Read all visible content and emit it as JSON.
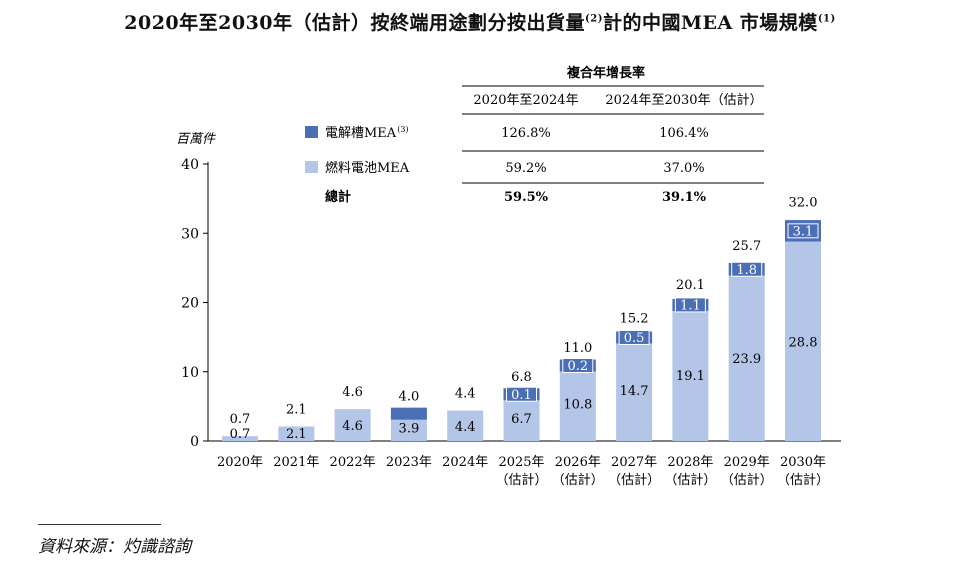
{
  "title": {
    "main": "2020年至2030年（估計）按終端用途劃分按出貨量",
    "note2": "(2)",
    "mid": "計的中國MEA 市場規模",
    "note1": "(1)"
  },
  "source": "資料來源：灼識諮詢",
  "colors": {
    "electrolyzer": "#4a6fb5",
    "fuel_cell": "#b4c6e7",
    "axis": "#000000"
  },
  "growth_table": {
    "header": "複合年增長率",
    "columns": [
      "2020年至2024年",
      "2024年至2030年（估計）"
    ],
    "rows": [
      {
        "label": "電解槽MEA",
        "note": "(3)",
        "values": [
          "126.8%",
          "106.4%"
        ],
        "bold": false,
        "swatch": "electrolyzer"
      },
      {
        "label": "燃料電池MEA",
        "note": "",
        "values": [
          "59.2%",
          "37.0%"
        ],
        "bold": false,
        "swatch": "fuel_cell"
      },
      {
        "label": "總計",
        "note": "",
        "values": [
          "59.5%",
          "39.1%"
        ],
        "bold": true,
        "swatch": ""
      }
    ]
  },
  "chart_data": {
    "type": "bar",
    "stacked": true,
    "ylabel": "百萬件",
    "ylim": [
      0,
      40
    ],
    "yticks": [
      0,
      10,
      20,
      30,
      40
    ],
    "categories": [
      "2020年",
      "2021年",
      "2022年",
      "2023年",
      "2024年",
      "2025年",
      "2026年",
      "2027年",
      "2028年",
      "2029年",
      "2030年"
    ],
    "category_sub": [
      "",
      "",
      "",
      "",
      "",
      "（估計）",
      "（估計）",
      "（估計）",
      "（估計）",
      "（估計）",
      "（估計）"
    ],
    "series": [
      {
        "name": "燃料電池MEA",
        "color_key": "fuel_cell",
        "values": [
          0.7,
          2.1,
          4.6,
          3.9,
          4.4,
          6.7,
          10.8,
          14.7,
          19.1,
          23.9,
          28.8
        ],
        "labels": [
          "0.7",
          "2.1",
          "4.6",
          "3.9",
          "4.4",
          "6.7",
          "10.8",
          "14.7",
          "19.1",
          "23.9",
          "28.8"
        ]
      },
      {
        "name": "電解槽MEA",
        "color_key": "electrolyzer",
        "values": [
          0,
          0,
          0,
          0.1,
          0,
          0.1,
          0.2,
          0.5,
          1.1,
          1.8,
          3.1
        ],
        "labels": [
          "",
          "",
          "",
          "",
          "",
          "0.1",
          "0.2",
          "0.5",
          "1.1",
          "1.8",
          "3.1"
        ]
      }
    ],
    "totals": [
      0.7,
      2.1,
      4.6,
      4.0,
      4.4,
      6.8,
      11.0,
      15.2,
      20.1,
      25.7,
      32.0
    ],
    "total_labels": [
      "0.7",
      "2.1",
      "4.6",
      "4.0",
      "4.4",
      "6.8",
      "11.0",
      "15.2",
      "20.1",
      "25.7",
      "32.0"
    ]
  }
}
